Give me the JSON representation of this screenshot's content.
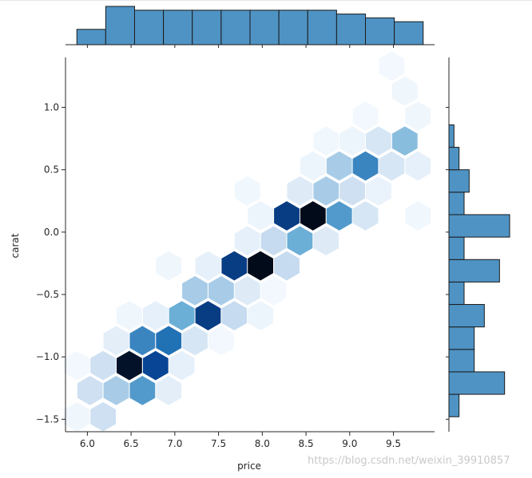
{
  "chart_data": {
    "type": "jointplot-hexbin",
    "x_label": "price",
    "y_label": "carat",
    "xlim": [
      5.75,
      9.97
    ],
    "ylim": [
      -1.6,
      1.4
    ],
    "x_ticks": [
      6.0,
      6.5,
      7.0,
      7.5,
      8.0,
      8.5,
      9.0,
      9.5
    ],
    "y_ticks": [
      -1.5,
      -1.0,
      -0.5,
      0.0,
      0.5,
      1.0
    ],
    "hex_color_low": "#f7fbff",
    "hex_color_high": "#000000",
    "hexbins": [
      {
        "x": 5.88,
        "y": -1.48,
        "density": 0.05
      },
      {
        "x": 6.18,
        "y": -1.48,
        "density": 0.25
      },
      {
        "x": 5.88,
        "y": -1.07,
        "density": 0.03
      },
      {
        "x": 6.03,
        "y": -1.27,
        "density": 0.25
      },
      {
        "x": 6.33,
        "y": -1.27,
        "density": 0.35
      },
      {
        "x": 6.63,
        "y": -1.27,
        "density": 0.5
      },
      {
        "x": 6.93,
        "y": -1.27,
        "density": 0.12
      },
      {
        "x": 6.18,
        "y": -1.07,
        "density": 0.25
      },
      {
        "x": 6.48,
        "y": -1.07,
        "density": 0.95
      },
      {
        "x": 6.78,
        "y": -1.07,
        "density": 0.75
      },
      {
        "x": 7.08,
        "y": -1.07,
        "density": 0.1
      },
      {
        "x": 6.33,
        "y": -0.87,
        "density": 0.12
      },
      {
        "x": 6.63,
        "y": -0.87,
        "density": 0.55
      },
      {
        "x": 6.93,
        "y": -0.87,
        "density": 0.6
      },
      {
        "x": 7.23,
        "y": -0.87,
        "density": 0.2
      },
      {
        "x": 7.53,
        "y": -0.87,
        "density": 0.03
      },
      {
        "x": 6.48,
        "y": -0.67,
        "density": 0.05
      },
      {
        "x": 6.78,
        "y": -0.67,
        "density": 0.1
      },
      {
        "x": 7.08,
        "y": -0.67,
        "density": 0.45
      },
      {
        "x": 7.38,
        "y": -0.67,
        "density": 0.8
      },
      {
        "x": 7.68,
        "y": -0.67,
        "density": 0.3
      },
      {
        "x": 7.98,
        "y": -0.67,
        "density": 0.06
      },
      {
        "x": 7.23,
        "y": -0.47,
        "density": 0.35
      },
      {
        "x": 7.53,
        "y": -0.47,
        "density": 0.35
      },
      {
        "x": 7.83,
        "y": -0.47,
        "density": 0.15
      },
      {
        "x": 8.13,
        "y": -0.47,
        "density": 0.03
      },
      {
        "x": 6.93,
        "y": -0.27,
        "density": 0.05
      },
      {
        "x": 7.38,
        "y": -0.27,
        "density": 0.1
      },
      {
        "x": 7.68,
        "y": -0.27,
        "density": 0.8
      },
      {
        "x": 7.98,
        "y": -0.27,
        "density": 0.97
      },
      {
        "x": 8.28,
        "y": -0.27,
        "density": 0.3
      },
      {
        "x": 7.83,
        "y": -0.07,
        "density": 0.1
      },
      {
        "x": 8.13,
        "y": -0.07,
        "density": 0.3
      },
      {
        "x": 8.43,
        "y": -0.07,
        "density": 0.45
      },
      {
        "x": 8.73,
        "y": -0.07,
        "density": 0.15
      },
      {
        "x": 7.98,
        "y": 0.13,
        "density": 0.06
      },
      {
        "x": 8.28,
        "y": 0.13,
        "density": 0.8
      },
      {
        "x": 8.58,
        "y": 0.13,
        "density": 0.97
      },
      {
        "x": 8.88,
        "y": 0.13,
        "density": 0.5
      },
      {
        "x": 9.18,
        "y": 0.13,
        "density": 0.2
      },
      {
        "x": 9.78,
        "y": 0.13,
        "density": 0.04
      },
      {
        "x": 7.83,
        "y": 0.33,
        "density": 0.04
      },
      {
        "x": 8.43,
        "y": 0.33,
        "density": 0.15
      },
      {
        "x": 8.73,
        "y": 0.33,
        "density": 0.35
      },
      {
        "x": 9.03,
        "y": 0.33,
        "density": 0.25
      },
      {
        "x": 9.33,
        "y": 0.33,
        "density": 0.08
      },
      {
        "x": 8.58,
        "y": 0.53,
        "density": 0.06
      },
      {
        "x": 8.88,
        "y": 0.53,
        "density": 0.35
      },
      {
        "x": 9.18,
        "y": 0.53,
        "density": 0.55
      },
      {
        "x": 9.48,
        "y": 0.53,
        "density": 0.2
      },
      {
        "x": 9.78,
        "y": 0.53,
        "density": 0.1
      },
      {
        "x": 8.73,
        "y": 0.73,
        "density": 0.04
      },
      {
        "x": 9.03,
        "y": 0.73,
        "density": 0.06
      },
      {
        "x": 9.33,
        "y": 0.73,
        "density": 0.2
      },
      {
        "x": 9.63,
        "y": 0.73,
        "density": 0.4
      },
      {
        "x": 9.18,
        "y": 0.93,
        "density": 0.03
      },
      {
        "x": 9.78,
        "y": 0.93,
        "density": 0.05
      },
      {
        "x": 9.63,
        "y": 1.13,
        "density": 0.05
      },
      {
        "x": 9.48,
        "y": 1.33,
        "density": 0.03
      }
    ],
    "x_marginal": {
      "bin_edges": [
        5.88,
        6.21,
        6.54,
        6.87,
        7.2,
        7.53,
        7.86,
        8.19,
        8.52,
        8.85,
        9.18,
        9.51,
        9.84
      ],
      "counts": [
        4,
        10,
        9,
        9,
        9,
        9,
        9,
        9,
        9,
        8,
        7,
        6
      ]
    },
    "y_marginal": {
      "bin_edges": [
        -1.48,
        -1.3,
        -1.12,
        -0.94,
        -0.76,
        -0.58,
        -0.4,
        -0.22,
        -0.04,
        0.14,
        0.32,
        0.5,
        0.68,
        0.86
      ],
      "counts": [
        2,
        11,
        5,
        5,
        7,
        3,
        10,
        3,
        12,
        3,
        4,
        2,
        1
      ]
    }
  },
  "watermark": "https://blog.csdn.net/weixin_39910857"
}
